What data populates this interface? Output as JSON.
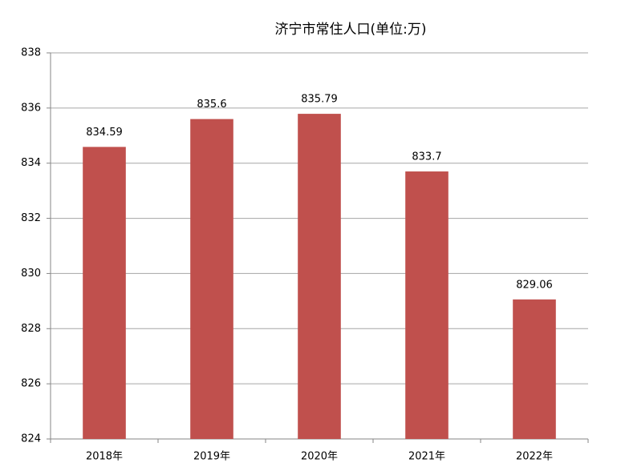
{
  "chart_data": {
    "type": "bar",
    "title": "济宁市常住人口(单位:万)",
    "categories": [
      "2018年",
      "2019年",
      "2020年",
      "2021年",
      "2022年"
    ],
    "values": [
      834.59,
      835.6,
      835.79,
      833.7,
      829.06
    ],
    "color": "#c0504d",
    "ylim": [
      824,
      838
    ],
    "yticks": [
      824,
      826,
      828,
      830,
      832,
      834,
      836,
      838
    ],
    "grid": true,
    "data_labels": true
  }
}
